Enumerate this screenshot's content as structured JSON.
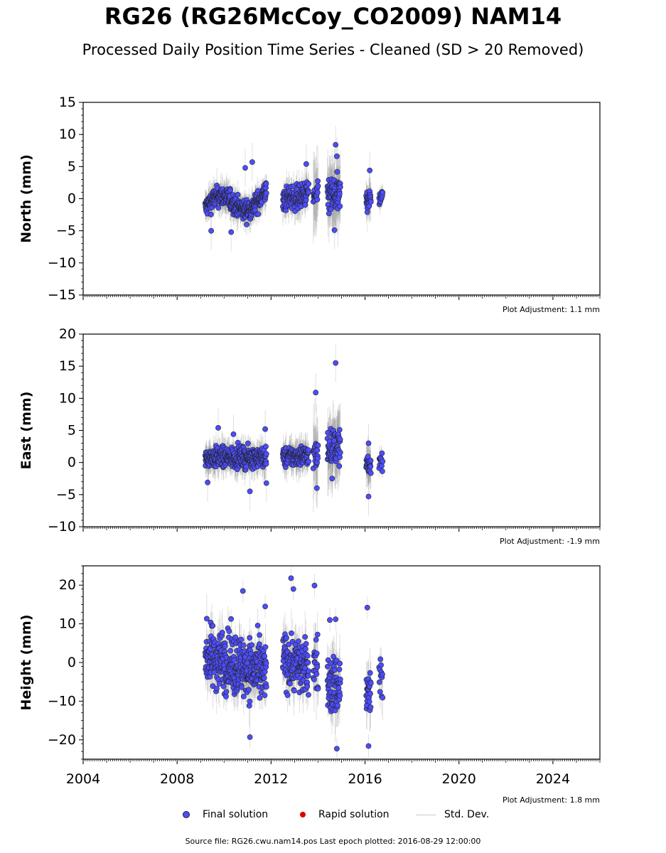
{
  "title": "RG26 (RG26McCoy_CO2009) NAM14",
  "subtitle": "Processed Daily Position Time Series - Cleaned (SD > 20 Removed)",
  "colors": {
    "final": "#4d4dff",
    "rapid": "#dd0000",
    "stddev": "#c8c8c8"
  },
  "legend": {
    "final": "Final solution",
    "rapid": "Rapid solution",
    "stddev": "Std. Dev."
  },
  "footer": "Source file: RG26.cwu.nam14.pos  Last epoch plotted: 2016-08-29 12:00:00",
  "chart_data": [
    {
      "type": "scatter",
      "ylabel": "North (mm)",
      "adjustment": "Plot Adjustment: 1.1 mm",
      "xlim": [
        2004,
        2026
      ],
      "ylim": [
        -15,
        15
      ],
      "yticks": [
        -15,
        -10,
        -5,
        0,
        5,
        10,
        15
      ],
      "ytick_labels": [
        "−15",
        "−10",
        "−5",
        "0",
        "5",
        "10",
        "15"
      ],
      "show_xtick_labels": false,
      "segments": [
        {
          "x0": 2009.2,
          "x1": 2011.8,
          "mean_start": -1.5,
          "mean_end": 0.3,
          "bump": 1.5,
          "spread": 1.1,
          "sd": 1.8,
          "count": 340
        },
        {
          "x0": 2012.5,
          "x1": 2013.6,
          "mean_start": -0.5,
          "mean_end": 1.0,
          "bump": 0.3,
          "spread": 1.3,
          "sd": 2.0,
          "count": 130
        },
        {
          "x0": 2013.8,
          "x1": 2014.0,
          "mean_start": 0.3,
          "mean_end": 0.3,
          "bump": 0,
          "spread": 1.4,
          "sd": 4.5,
          "count": 20
        },
        {
          "x0": 2014.4,
          "x1": 2014.95,
          "mean_start": 0.5,
          "mean_end": 0.3,
          "bump": 0,
          "spread": 2.0,
          "sd": 4.0,
          "count": 70
        },
        {
          "x0": 2016.05,
          "x1": 2016.25,
          "mean_start": 0.0,
          "mean_end": 0.0,
          "bump": 0,
          "spread": 1.0,
          "sd": 2.2,
          "count": 26
        },
        {
          "x0": 2016.6,
          "x1": 2016.75,
          "mean_start": 0.0,
          "mean_end": 0.0,
          "bump": 0,
          "spread": 0.8,
          "sd": 1.5,
          "count": 12
        }
      ],
      "outliers": [
        {
          "x": 2009.45,
          "y": -5.0
        },
        {
          "x": 2010.3,
          "y": -5.2
        },
        {
          "x": 2010.9,
          "y": 4.8
        },
        {
          "x": 2011.2,
          "y": 5.7
        },
        {
          "x": 2013.5,
          "y": 5.4
        },
        {
          "x": 2014.75,
          "y": 8.4
        },
        {
          "x": 2014.8,
          "y": 6.6
        },
        {
          "x": 2014.7,
          "y": -4.9
        },
        {
          "x": 2016.2,
          "y": 4.4
        },
        {
          "x": 2016.1,
          "y": -2.1
        }
      ]
    },
    {
      "type": "scatter",
      "ylabel": "East (mm)",
      "adjustment": "Plot Adjustment: -1.9 mm",
      "xlim": [
        2004,
        2026
      ],
      "ylim": [
        -10,
        20
      ],
      "yticks": [
        -10,
        -5,
        0,
        5,
        10,
        15,
        20
      ],
      "ytick_labels": [
        "−10",
        "−5",
        "0",
        "5",
        "10",
        "15",
        "20"
      ],
      "show_xtick_labels": false,
      "segments": [
        {
          "x0": 2009.2,
          "x1": 2011.8,
          "mean_start": 0.8,
          "mean_end": 0.8,
          "bump": 0,
          "spread": 1.1,
          "sd": 1.8,
          "count": 340
        },
        {
          "x0": 2012.5,
          "x1": 2013.6,
          "mean_start": 0.8,
          "mean_end": 1.2,
          "bump": 0,
          "spread": 1.1,
          "sd": 2.0,
          "count": 130
        },
        {
          "x0": 2013.8,
          "x1": 2014.0,
          "mean_start": 1.0,
          "mean_end": 1.0,
          "bump": 0,
          "spread": 1.8,
          "sd": 5.0,
          "count": 20
        },
        {
          "x0": 2014.4,
          "x1": 2014.95,
          "mean_start": 2.5,
          "mean_end": 2.5,
          "bump": 0,
          "spread": 1.8,
          "sd": 4.0,
          "count": 70
        },
        {
          "x0": 2016.05,
          "x1": 2016.25,
          "mean_start": -0.5,
          "mean_end": -0.5,
          "bump": 0,
          "spread": 1.0,
          "sd": 2.5,
          "count": 26
        },
        {
          "x0": 2016.6,
          "x1": 2016.75,
          "mean_start": 0.2,
          "mean_end": 0.2,
          "bump": 0,
          "spread": 0.8,
          "sd": 1.5,
          "count": 12
        }
      ],
      "outliers": [
        {
          "x": 2009.3,
          "y": -3.1
        },
        {
          "x": 2009.75,
          "y": 5.4
        },
        {
          "x": 2010.4,
          "y": 4.4
        },
        {
          "x": 2011.1,
          "y": -4.5
        },
        {
          "x": 2011.75,
          "y": 5.2
        },
        {
          "x": 2011.8,
          "y": -3.2
        },
        {
          "x": 2013.9,
          "y": 10.9
        },
        {
          "x": 2013.95,
          "y": -4.0
        },
        {
          "x": 2014.75,
          "y": 15.5
        },
        {
          "x": 2014.6,
          "y": -2.5
        },
        {
          "x": 2016.15,
          "y": -5.3
        },
        {
          "x": 2016.15,
          "y": 3.0
        }
      ]
    },
    {
      "type": "scatter",
      "ylabel": "Height (mm)",
      "adjustment": "Plot Adjustment: 1.8 mm",
      "xlim": [
        2004,
        2026
      ],
      "ylim": [
        -25,
        25
      ],
      "yticks": [
        -20,
        -10,
        0,
        10,
        20
      ],
      "ytick_labels": [
        "−20",
        "−10",
        "0",
        "10",
        "20"
      ],
      "show_xtick_labels": true,
      "xticks": [
        2004,
        2008,
        2012,
        2016,
        2020,
        2024
      ],
      "xtick_labels": [
        "2004",
        "2008",
        "2012",
        "2016",
        "2020",
        "2024"
      ],
      "segments": [
        {
          "x0": 2009.2,
          "x1": 2011.8,
          "mean_start": 2.0,
          "mean_end": -3.0,
          "bump": 0,
          "spread": 5.5,
          "sd": 4.5,
          "count": 340
        },
        {
          "x0": 2012.5,
          "x1": 2013.6,
          "mean_start": 1.0,
          "mean_end": -2.0,
          "bump": 0,
          "spread": 5.0,
          "sd": 4.5,
          "count": 130
        },
        {
          "x0": 2013.8,
          "x1": 2014.0,
          "mean_start": 0.0,
          "mean_end": 0.0,
          "bump": 0,
          "spread": 5.0,
          "sd": 6.0,
          "count": 20
        },
        {
          "x0": 2014.4,
          "x1": 2014.95,
          "mean_start": -6.0,
          "mean_end": -6.0,
          "bump": 0,
          "spread": 5.5,
          "sd": 5.5,
          "count": 70
        },
        {
          "x0": 2016.05,
          "x1": 2016.25,
          "mean_start": -8.0,
          "mean_end": -8.0,
          "bump": 0,
          "spread": 5.0,
          "sd": 5.0,
          "count": 26
        },
        {
          "x0": 2016.6,
          "x1": 2016.75,
          "mean_start": -5.0,
          "mean_end": -5.0,
          "bump": 0,
          "spread": 4.5,
          "sd": 4.0,
          "count": 12
        }
      ],
      "outliers": [
        {
          "x": 2012.85,
          "y": 21.8
        },
        {
          "x": 2012.95,
          "y": 19.0
        },
        {
          "x": 2013.85,
          "y": 19.9
        },
        {
          "x": 2010.8,
          "y": 18.5
        },
        {
          "x": 2011.75,
          "y": 14.5
        },
        {
          "x": 2016.1,
          "y": 14.2
        },
        {
          "x": 2016.15,
          "y": -21.6
        },
        {
          "x": 2014.8,
          "y": -22.3
        },
        {
          "x": 2011.1,
          "y": -19.3
        },
        {
          "x": 2014.75,
          "y": 11.2
        },
        {
          "x": 2014.5,
          "y": 11.0
        }
      ]
    }
  ]
}
